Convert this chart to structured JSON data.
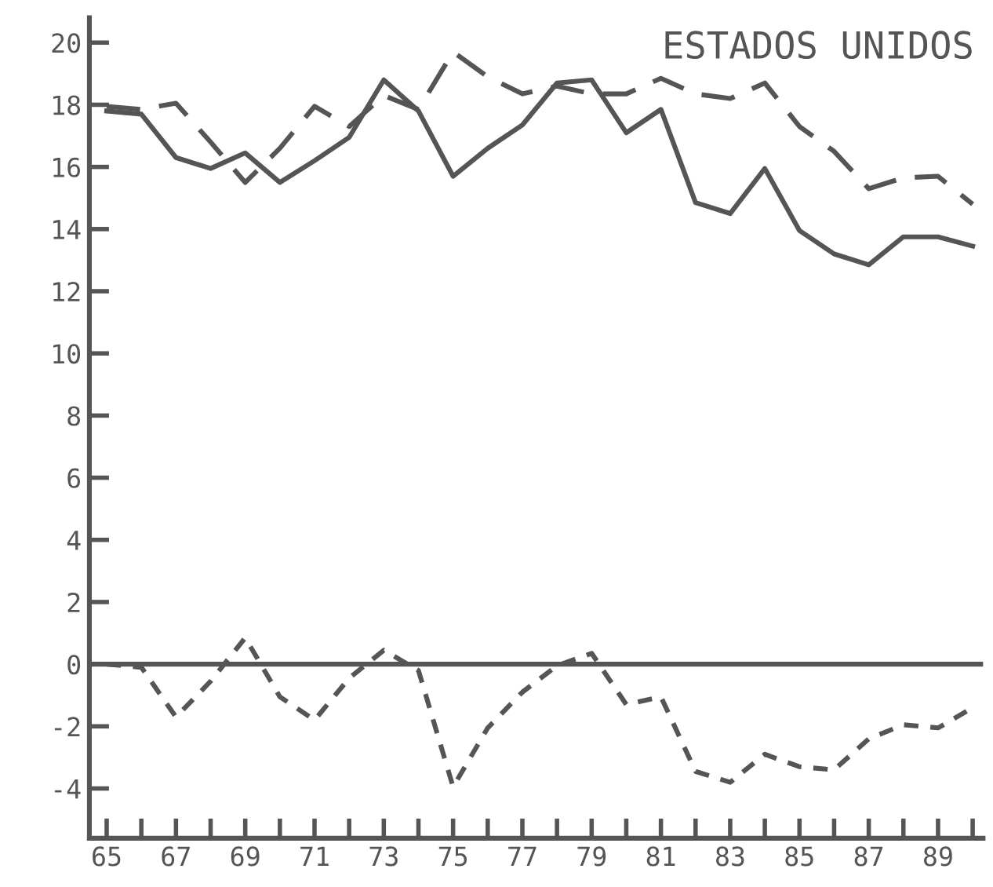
{
  "chart_data": {
    "type": "line",
    "title": "ESTADOS UNIDOS",
    "x": [
      65,
      66,
      67,
      68,
      69,
      70,
      71,
      72,
      73,
      74,
      75,
      76,
      77,
      78,
      79,
      80,
      81,
      82,
      83,
      84,
      85,
      86,
      87,
      88,
      89,
      90
    ],
    "series": [
      {
        "color": "#555555",
        "line_style": "solid",
        "values": [
          17.8,
          17.7,
          16.3,
          15.95,
          16.45,
          15.5,
          16.2,
          16.95,
          18.8,
          17.8,
          15.7,
          16.6,
          17.35,
          18.7,
          18.8,
          17.1,
          17.85,
          14.85,
          14.5,
          15.95,
          13.95,
          13.2,
          12.85,
          13.75,
          13.75,
          13.45
        ]
      },
      {
        "color": "#555555",
        "line_style": "dashed",
        "values": [
          17.95,
          17.85,
          18.05,
          16.8,
          15.5,
          16.6,
          17.95,
          17.3,
          18.3,
          17.85,
          19.7,
          18.9,
          18.35,
          18.6,
          18.35,
          18.35,
          18.85,
          18.35,
          18.2,
          18.7,
          17.3,
          16.5,
          15.3,
          15.65,
          15.7,
          14.8
        ]
      },
      {
        "color": "#555555",
        "line_style": "dotted",
        "values": [
          0.0,
          -0.1,
          -1.7,
          -0.55,
          0.85,
          -1.05,
          -1.8,
          -0.45,
          0.45,
          -0.2,
          -3.95,
          -2.05,
          -0.9,
          -0.05,
          0.35,
          -1.3,
          -1.05,
          -3.45,
          -3.8,
          -2.9,
          -3.3,
          -3.4,
          -2.4,
          -1.95,
          -2.05,
          -1.4
        ]
      }
    ],
    "xlim": [
      64.5,
      90.3
    ],
    "xticks": [
      65,
      {
        "value": 66,
        "label": null
      },
      67,
      {
        "value": 68,
        "label": null
      },
      69,
      {
        "value": 70,
        "label": null
      },
      71,
      {
        "value": 72,
        "label": null
      },
      73,
      {
        "value": 74,
        "label": null
      },
      75,
      {
        "value": 76,
        "label": null
      },
      77,
      {
        "value": 78,
        "label": null
      },
      79,
      {
        "value": 80,
        "label": null
      },
      81,
      {
        "value": 82,
        "label": null
      },
      83,
      {
        "value": 84,
        "label": null
      },
      85,
      {
        "value": 86,
        "label": null
      },
      87,
      {
        "value": 88,
        "label": null
      },
      89,
      {
        "value": 90,
        "label": null
      }
    ],
    "ylim": [
      -5.6,
      20.8
    ],
    "yticks": [
      -4,
      -2,
      0,
      2,
      4,
      6,
      8,
      10,
      12,
      14,
      16,
      18,
      20
    ],
    "ref_lines": [
      {
        "axis": "y",
        "value": 0,
        "color": "#555555",
        "line_style": "solid"
      }
    ],
    "grid": false,
    "legend": false,
    "marker": "none"
  }
}
